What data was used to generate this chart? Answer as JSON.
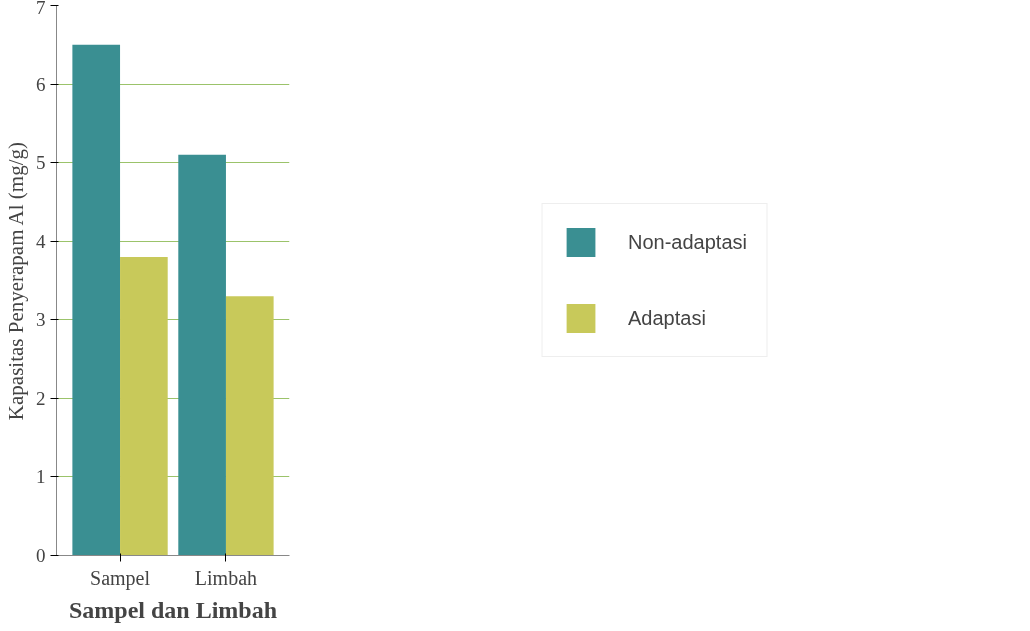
{
  "chart_data": {
    "type": "bar",
    "xlabel": "Sampel dan Limbah",
    "ylabel": "Kapasitas Penyerapam Al (mg/g)",
    "categories": [
      "Sampel",
      "Limbah"
    ],
    "series": [
      {
        "name": "Non-adaptasi",
        "color": "#3a8f92",
        "values": [
          6.5,
          5.1
        ]
      },
      {
        "name": "Adaptasi",
        "color": "#c8c95a",
        "values": [
          3.8,
          3.3
        ]
      }
    ],
    "ylim": [
      0,
      7
    ],
    "yticks": [
      0,
      1,
      2,
      3,
      4,
      5,
      6,
      7
    ],
    "grid": "y",
    "legend": "right"
  }
}
